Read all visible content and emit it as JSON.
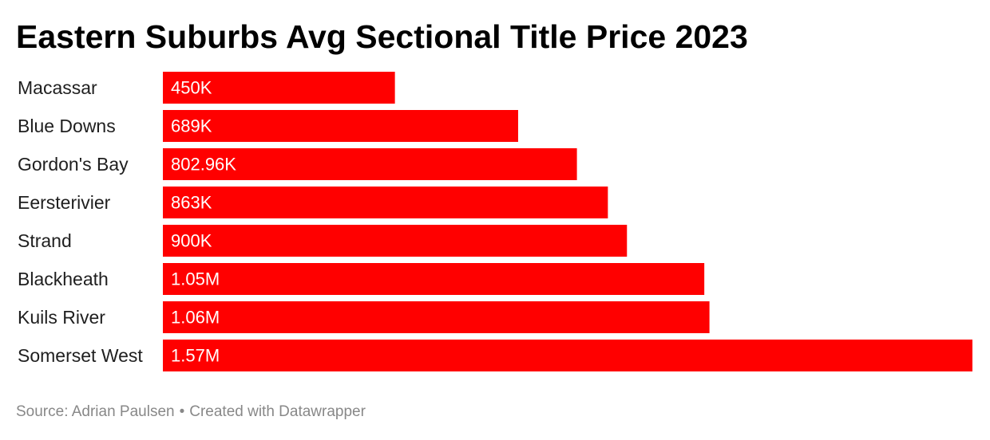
{
  "chart_data": {
    "type": "bar",
    "orientation": "horizontal",
    "title": "Eastern Suburbs Avg Sectional Title Price 2023",
    "categories": [
      "Macassar",
      "Blue Downs",
      "Gordon's Bay",
      "Eersterivier",
      "Strand",
      "Blackheath",
      "Kuils River",
      "Somerset West"
    ],
    "values": [
      450000,
      689000,
      802960,
      863000,
      900000,
      1050000,
      1060000,
      1570000
    ],
    "value_labels": [
      "450K",
      "689K",
      "802.96K",
      "863K",
      "900K",
      "1.05M",
      "1.06M",
      "1.57M"
    ],
    "xlim": [
      0,
      1570000
    ],
    "grid": false,
    "bar_color": "#ff0000"
  },
  "footer": {
    "source_text": "Source: Adrian Paulsen",
    "separator": "•",
    "credit_text": "Created with Datawrapper"
  }
}
